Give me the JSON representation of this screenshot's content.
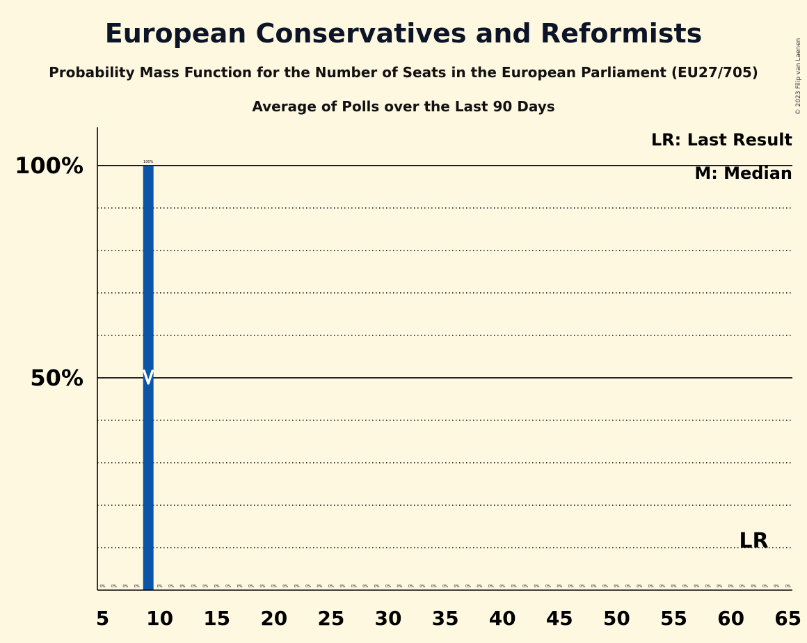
{
  "title": "European Conservatives and Reformists",
  "subtitle": "Probability Mass Function for the Number of Seats in the European Parliament (EU27/705)",
  "subsubtitle": "Average of Polls over the Last 90 Days",
  "copyright": "© 2023 Filip van Laenen",
  "legend": {
    "last_result": "LR: Last Result",
    "median": "M: Median"
  },
  "colors": {
    "background": "#fff8e1",
    "bar": "#0a55a8",
    "title": "#0c1428"
  },
  "chart_data": {
    "type": "bar",
    "x": [
      5,
      6,
      7,
      8,
      9,
      10,
      11,
      12,
      13,
      14,
      15,
      16,
      17,
      18,
      19,
      20,
      21,
      22,
      23,
      24,
      25,
      26,
      27,
      28,
      29,
      30,
      31,
      32,
      33,
      34,
      35,
      36,
      37,
      38,
      39,
      40,
      41,
      42,
      43,
      44,
      45,
      46,
      47,
      48,
      49,
      50,
      51,
      52,
      53,
      54,
      55,
      56,
      57,
      58,
      59,
      60,
      61,
      62,
      63,
      64,
      65
    ],
    "values": [
      0,
      0,
      0,
      0,
      100,
      0,
      0,
      0,
      0,
      0,
      0,
      0,
      0,
      0,
      0,
      0,
      0,
      0,
      0,
      0,
      0,
      0,
      0,
      0,
      0,
      0,
      0,
      0,
      0,
      0,
      0,
      0,
      0,
      0,
      0,
      0,
      0,
      0,
      0,
      0,
      0,
      0,
      0,
      0,
      0,
      0,
      0,
      0,
      0,
      0,
      0,
      0,
      0,
      0,
      0,
      0,
      0,
      0,
      0,
      0,
      0
    ],
    "data_labels": [
      "0%",
      "0%",
      "0%",
      "0%",
      "100%",
      "0%",
      "0%",
      "0%",
      "0%",
      "0%",
      "0%",
      "0%",
      "0%",
      "0%",
      "0%",
      "0%",
      "0%",
      "0%",
      "0%",
      "0%",
      "0%",
      "0%",
      "0%",
      "0%",
      "0%",
      "0%",
      "0%",
      "0%",
      "0%",
      "0%",
      "0%",
      "0%",
      "0%",
      "0%",
      "0%",
      "0%",
      "0%",
      "0%",
      "0%",
      "0%",
      "0%",
      "0%",
      "0%",
      "0%",
      "0%",
      "0%",
      "0%",
      "0%",
      "0%",
      "0%",
      "0%",
      "0%",
      "0%",
      "0%",
      "0%",
      "0%",
      "0%",
      "0%",
      "0%",
      "0%",
      "0%"
    ],
    "xlim": [
      5,
      65
    ],
    "ylim": [
      0,
      109
    ],
    "x_tick_labels": [
      "5",
      "10",
      "15",
      "20",
      "25",
      "30",
      "35",
      "40",
      "45",
      "50",
      "55",
      "60",
      "65"
    ],
    "y_tick_labels": [
      "50%",
      "100%"
    ],
    "y_ticks": [
      50,
      100
    ],
    "dotted_gridlines": [
      10,
      20,
      30,
      40,
      60,
      70,
      80,
      90
    ],
    "median": 9,
    "median_marker": "M",
    "last_result": 62,
    "last_result_marker": "LR"
  }
}
